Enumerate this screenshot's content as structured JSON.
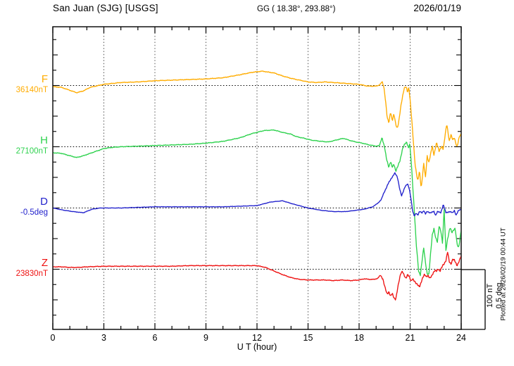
{
  "header": {
    "station": "San Juan (SJG)  [USGS]",
    "coordinates": "GG ( 18.38°, 293.88°)",
    "date": "2026/01/19"
  },
  "footer": {
    "x_axis_label": "U T (hour)",
    "plotted_at": "Plotted at 2026/02/19 00:44 UT"
  },
  "scale_bar": {
    "line1": "100 nT",
    "line2": "0.5 deg"
  },
  "chart_data": {
    "type": "line",
    "title": "San Juan (SJG) [USGS] 1-day magnetogram 2026/01/19",
    "xlabel": "U T (hour)",
    "x_range": [
      0,
      24
    ],
    "x_ticks": [
      0,
      3,
      6,
      9,
      12,
      15,
      18,
      21,
      24
    ],
    "grid_hours": [
      3,
      6,
      9,
      12,
      15,
      18,
      21
    ],
    "grid": true,
    "legend_position": "left",
    "scale": {
      "nT_per_division": 100,
      "deg_per_division": 0.5
    },
    "channels": [
      {
        "id": "F",
        "unit": "nT",
        "baseline": 36140,
        "baseline_label": "36140nT",
        "color": "#FFAC00",
        "points": [
          [
            0,
            -2
          ],
          [
            0.5,
            -3
          ],
          [
            1,
            -8
          ],
          [
            1.4,
            -12
          ],
          [
            1.8,
            -9
          ],
          [
            2.2,
            -3
          ],
          [
            3,
            2
          ],
          [
            4,
            5
          ],
          [
            5,
            6
          ],
          [
            6,
            8
          ],
          [
            7,
            9
          ],
          [
            8,
            10
          ],
          [
            9,
            11
          ],
          [
            10,
            13
          ],
          [
            11,
            18
          ],
          [
            11.7,
            22
          ],
          [
            12.3,
            24
          ],
          [
            13,
            21
          ],
          [
            13.5,
            16
          ],
          [
            14,
            12
          ],
          [
            14.5,
            9
          ],
          [
            15,
            6
          ],
          [
            15.5,
            5
          ],
          [
            16,
            6
          ],
          [
            16.5,
            5
          ],
          [
            17,
            4
          ],
          [
            17.5,
            3
          ],
          [
            18,
            2
          ],
          [
            18.5,
            -1
          ],
          [
            19,
            -1
          ],
          [
            19.2,
            1
          ],
          [
            19.35,
            6
          ],
          [
            19.45,
            -1
          ],
          [
            19.55,
            -24
          ],
          [
            19.65,
            -54
          ],
          [
            19.75,
            -63
          ],
          [
            19.85,
            -43
          ],
          [
            19.95,
            -59
          ],
          [
            20.05,
            -48
          ],
          [
            20.15,
            -65
          ],
          [
            20.25,
            -71
          ],
          [
            20.35,
            -57
          ],
          [
            20.45,
            -36
          ],
          [
            20.55,
            -19
          ],
          [
            20.65,
            -4
          ],
          [
            20.75,
            -2
          ],
          [
            20.85,
            -12
          ],
          [
            20.92,
            -2
          ],
          [
            21,
            -24
          ],
          [
            21.1,
            -59
          ],
          [
            21.2,
            -98
          ],
          [
            21.3,
            -134
          ],
          [
            21.45,
            -160
          ],
          [
            21.55,
            -143
          ],
          [
            21.65,
            -172
          ],
          [
            21.8,
            -130
          ],
          [
            21.9,
            -154
          ],
          [
            22,
            -118
          ],
          [
            22.1,
            -128
          ],
          [
            22.3,
            -102
          ],
          [
            22.4,
            -116
          ],
          [
            22.55,
            -95
          ],
          [
            22.7,
            -110
          ],
          [
            22.85,
            -101
          ],
          [
            22.95,
            -107
          ],
          [
            23.15,
            -63
          ],
          [
            23.3,
            -93
          ],
          [
            23.4,
            -83
          ],
          [
            23.5,
            -90
          ],
          [
            23.6,
            -87
          ],
          [
            23.75,
            -104
          ],
          [
            23.9,
            -84
          ],
          [
            24,
            -81
          ]
        ]
      },
      {
        "id": "H",
        "unit": "nT",
        "baseline": 27100,
        "baseline_label": "27100nT",
        "color": "#2FD24F",
        "points": [
          [
            0,
            -10
          ],
          [
            0.5,
            -11
          ],
          [
            1,
            -15
          ],
          [
            1.4,
            -18
          ],
          [
            1.8,
            -15
          ],
          [
            2.5,
            -8
          ],
          [
            3,
            -3
          ],
          [
            3.5,
            -1
          ],
          [
            4,
            0
          ],
          [
            5,
            1
          ],
          [
            6,
            2
          ],
          [
            7,
            3
          ],
          [
            8,
            4
          ],
          [
            9,
            6
          ],
          [
            10,
            9
          ],
          [
            11,
            15
          ],
          [
            11.7,
            22
          ],
          [
            12.4,
            27
          ],
          [
            13,
            28
          ],
          [
            13.5,
            24
          ],
          [
            14,
            21
          ],
          [
            14.3,
            17
          ],
          [
            14.8,
            14
          ],
          [
            15.2,
            11
          ],
          [
            15.8,
            9
          ],
          [
            16.2,
            8
          ],
          [
            16.9,
            13
          ],
          [
            17.1,
            14
          ],
          [
            17.4,
            11
          ],
          [
            17.8,
            8
          ],
          [
            18.2,
            6
          ],
          [
            18.6,
            3
          ],
          [
            19,
            1
          ],
          [
            19.2,
            2
          ],
          [
            19.35,
            16
          ],
          [
            19.5,
            -2
          ],
          [
            19.6,
            -19
          ],
          [
            19.75,
            -34
          ],
          [
            19.85,
            -25
          ],
          [
            19.95,
            -35
          ],
          [
            20.05,
            -28
          ],
          [
            20.15,
            -41
          ],
          [
            20.25,
            -35
          ],
          [
            20.4,
            -23
          ],
          [
            20.55,
            -4
          ],
          [
            20.7,
            5
          ],
          [
            20.8,
            8
          ],
          [
            20.9,
            -2
          ],
          [
            20.97,
            4
          ],
          [
            21.05,
            -19
          ],
          [
            21.15,
            -63
          ],
          [
            21.25,
            -108
          ],
          [
            21.35,
            -161
          ],
          [
            21.5,
            -208
          ],
          [
            21.6,
            -214
          ],
          [
            21.7,
            -191
          ],
          [
            21.8,
            -169
          ],
          [
            21.9,
            -193
          ],
          [
            22,
            -212
          ],
          [
            22.1,
            -214
          ],
          [
            22.2,
            -179
          ],
          [
            22.3,
            -147
          ],
          [
            22.4,
            -137
          ],
          [
            22.5,
            -153
          ],
          [
            22.6,
            -159
          ],
          [
            22.7,
            -132
          ],
          [
            22.8,
            -141
          ],
          [
            22.9,
            -161
          ],
          [
            23,
            -104
          ],
          [
            23.1,
            -173
          ],
          [
            23.2,
            -155
          ],
          [
            23.35,
            -134
          ],
          [
            23.45,
            -143
          ],
          [
            23.55,
            -140
          ],
          [
            23.65,
            -137
          ],
          [
            23.75,
            -161
          ],
          [
            23.85,
            -169
          ],
          [
            24,
            -140
          ]
        ]
      },
      {
        "id": "D",
        "unit": "deg",
        "baseline": -0.5,
        "baseline_label": "-0.5deg",
        "color": "#2121CC",
        "points": [
          [
            0,
            0
          ],
          [
            0.7,
            -0.02
          ],
          [
            1.2,
            -0.03
          ],
          [
            1.8,
            -0.04
          ],
          [
            2.3,
            -0.01
          ],
          [
            2.8,
            0
          ],
          [
            4,
            0
          ],
          [
            6,
            0.01
          ],
          [
            8,
            0.01
          ],
          [
            10,
            0.01
          ],
          [
            12,
            0.02
          ],
          [
            12.8,
            0.05
          ],
          [
            13.5,
            0.06
          ],
          [
            14.2,
            0.03
          ],
          [
            15,
            0
          ],
          [
            15.8,
            -0.02
          ],
          [
            16.5,
            -0.03
          ],
          [
            17.2,
            -0.03
          ],
          [
            17.8,
            -0.02
          ],
          [
            18.3,
            -0.01
          ],
          [
            18.8,
            0.01
          ],
          [
            19.1,
            0.04
          ],
          [
            19.3,
            0.07
          ],
          [
            19.5,
            0.14
          ],
          [
            19.7,
            0.2
          ],
          [
            19.9,
            0.25
          ],
          [
            20.1,
            0.29
          ],
          [
            20.25,
            0.26
          ],
          [
            20.4,
            0.15
          ],
          [
            20.5,
            0.1
          ],
          [
            20.6,
            0.14
          ],
          [
            20.7,
            0.18
          ],
          [
            20.85,
            0.2
          ],
          [
            20.95,
            0.16
          ],
          [
            21.05,
            0.08
          ],
          [
            21.15,
            -0.03
          ],
          [
            21.25,
            -0.07
          ],
          [
            21.35,
            -0.04
          ],
          [
            21.45,
            -0.06
          ],
          [
            21.55,
            -0.03
          ],
          [
            21.7,
            -0.04
          ],
          [
            21.8,
            -0.02
          ],
          [
            21.9,
            -0.05
          ],
          [
            22,
            -0.03
          ],
          [
            22.2,
            -0.04
          ],
          [
            22.4,
            -0.03
          ],
          [
            22.5,
            -0.06
          ],
          [
            22.6,
            -0.03
          ],
          [
            22.8,
            -0.04
          ],
          [
            22.95,
            0.03
          ],
          [
            23.1,
            -0.04
          ],
          [
            23.3,
            -0.03
          ],
          [
            23.5,
            -0.04
          ],
          [
            23.6,
            -0.02
          ],
          [
            23.7,
            -0.06
          ],
          [
            23.85,
            -0.02
          ],
          [
            24,
            -0.01
          ]
        ]
      },
      {
        "id": "Z",
        "unit": "nT",
        "baseline": 23830,
        "baseline_label": "23830nT",
        "color": "#EE1111",
        "points": [
          [
            0,
            4
          ],
          [
            0.5,
            4
          ],
          [
            1,
            3
          ],
          [
            1.5,
            3
          ],
          [
            2,
            4
          ],
          [
            3,
            5
          ],
          [
            4,
            5
          ],
          [
            5,
            5
          ],
          [
            6,
            5
          ],
          [
            7,
            5
          ],
          [
            8,
            6
          ],
          [
            9,
            6
          ],
          [
            10,
            6
          ],
          [
            11,
            6
          ],
          [
            12,
            6
          ],
          [
            12.5,
            3
          ],
          [
            13,
            -3
          ],
          [
            13.5,
            -9
          ],
          [
            14,
            -14
          ],
          [
            14.5,
            -17
          ],
          [
            15,
            -18
          ],
          [
            15.5,
            -18
          ],
          [
            16,
            -18
          ],
          [
            16.5,
            -19
          ],
          [
            17,
            -18
          ],
          [
            17.5,
            -19
          ],
          [
            18,
            -18
          ],
          [
            18.3,
            -16
          ],
          [
            18.6,
            -17
          ],
          [
            18.9,
            -17
          ],
          [
            19.1,
            -15
          ],
          [
            19.25,
            -10
          ],
          [
            19.4,
            -16
          ],
          [
            19.55,
            -34
          ],
          [
            19.65,
            -42
          ],
          [
            19.75,
            -37
          ],
          [
            19.85,
            -45
          ],
          [
            19.95,
            -41
          ],
          [
            20.05,
            -48
          ],
          [
            20.15,
            -50
          ],
          [
            20.3,
            -27
          ],
          [
            20.45,
            -6
          ],
          [
            20.55,
            -3
          ],
          [
            20.65,
            -11
          ],
          [
            20.75,
            -16
          ],
          [
            20.85,
            -8
          ],
          [
            20.95,
            -12
          ],
          [
            21.05,
            -21
          ],
          [
            21.15,
            -16
          ],
          [
            21.25,
            -19
          ],
          [
            21.35,
            -24
          ],
          [
            21.45,
            -27
          ],
          [
            21.55,
            -29
          ],
          [
            21.65,
            -21
          ],
          [
            21.75,
            -14
          ],
          [
            21.85,
            -9
          ],
          [
            21.95,
            -12
          ],
          [
            22.05,
            -10
          ],
          [
            22.15,
            -16
          ],
          [
            22.25,
            -12
          ],
          [
            22.35,
            -6
          ],
          [
            22.45,
            -2
          ],
          [
            22.55,
            -4
          ],
          [
            22.65,
            1
          ],
          [
            22.75,
            -3
          ],
          [
            22.9,
            5
          ],
          [
            23,
            9
          ],
          [
            23.1,
            15
          ],
          [
            23.2,
            29
          ],
          [
            23.3,
            12
          ],
          [
            23.4,
            9
          ],
          [
            23.5,
            17
          ],
          [
            23.6,
            15
          ],
          [
            23.75,
            6
          ],
          [
            23.85,
            12
          ],
          [
            24,
            22
          ]
        ]
      }
    ]
  }
}
